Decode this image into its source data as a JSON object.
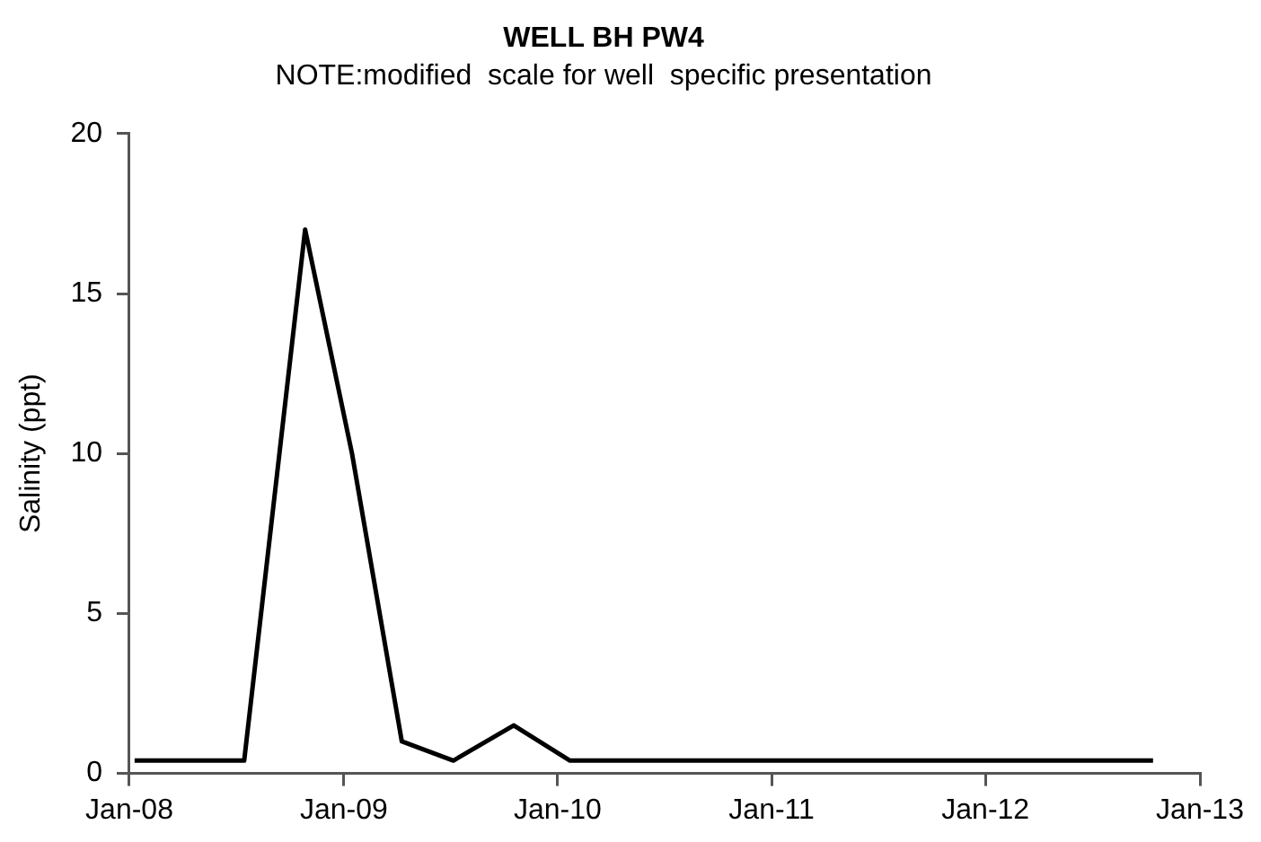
{
  "chart_data": {
    "type": "line",
    "title": "WELL BH PW4",
    "subtitle": "NOTE:modified  scale for well  specific presentation",
    "ylabel": "Salinity (ppt)",
    "x": [
      "2008-01-10",
      "2008-07-15",
      "2008-10-27",
      "2009-01-15",
      "2009-04-10",
      "2009-07-07",
      "2009-10-18",
      "2010-01-22",
      "2012-10-13"
    ],
    "series": [
      {
        "color": "#000000",
        "values": [
          0.4,
          0.4,
          17,
          10,
          1,
          0.4,
          1.5,
          0.4,
          0.4
        ]
      }
    ],
    "xlim": [
      "2008-01-01",
      "2013-01-01"
    ],
    "xticks": [
      {
        "value": "2008-01-01",
        "label": "Jan-08"
      },
      {
        "value": "2009-01-01",
        "label": "Jan-09"
      },
      {
        "value": "2010-01-01",
        "label": "Jan-10"
      },
      {
        "value": "2011-01-01",
        "label": "Jan-11"
      },
      {
        "value": "2012-01-01",
        "label": "Jan-12"
      },
      {
        "value": "2013-01-01",
        "label": "Jan-13"
      }
    ],
    "ylim": [
      0,
      20
    ],
    "yticks": [
      0,
      5,
      10,
      15,
      20
    ],
    "grid": false,
    "legend": false,
    "marker": "none",
    "line_style": "solid"
  }
}
